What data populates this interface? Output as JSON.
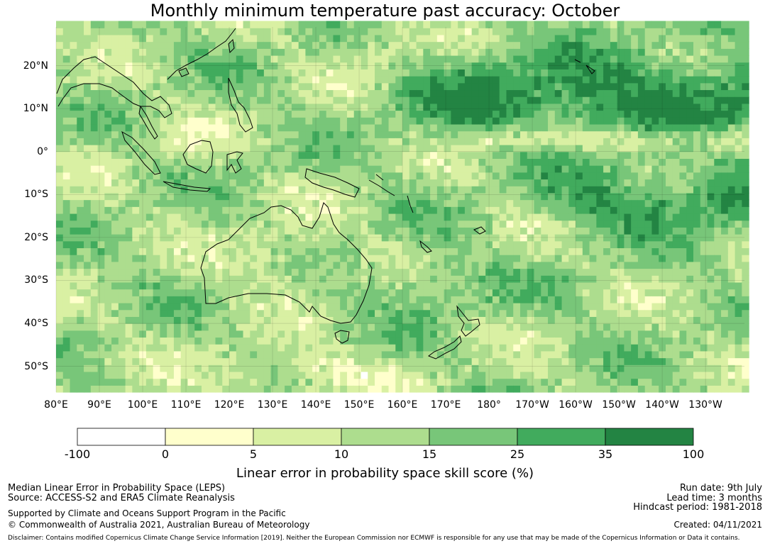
{
  "title": "Monthly minimum temperature past accuracy: October",
  "map": {
    "lat_ticks": [
      "20°N",
      "10°N",
      "0°",
      "10°S",
      "20°S",
      "30°S",
      "40°S",
      "50°S"
    ],
    "lon_ticks": [
      "80°E",
      "90°E",
      "100°E",
      "110°E",
      "120°E",
      "130°E",
      "140°E",
      "150°E",
      "160°E",
      "170°E",
      "180°",
      "170°W",
      "160°W",
      "150°W",
      "140°W",
      "130°W"
    ],
    "lon_range": [
      80,
      239
    ],
    "lat_range": [
      -56,
      29
    ]
  },
  "colorbar": {
    "boundaries": [
      "-100",
      "0",
      "5",
      "10",
      "15",
      "25",
      "35",
      "100"
    ],
    "colors": [
      "#ffffff",
      "#ffffcc",
      "#d9f0a3",
      "#addd8e",
      "#78c679",
      "#41ab5d",
      "#238443"
    ],
    "label": "Linear error in probability space skill score (%)"
  },
  "footer": {
    "left1": "Median Linear Error in Probability Space (LEPS)",
    "left2": "Source: ACCESS-S2 and ERA5 Climate Reanalysis",
    "left3": "Supported by Climate and Oceans Support Program in the Pacific",
    "left4": "© Commonwealth of Australia 2021, Australian Bureau of Meteorology",
    "right1": "Run date: 9th July",
    "right2": "Lead time: 3 months",
    "right3": "Hindcast period: 1981-2018",
    "right4": "Created: 04/11/2021",
    "disclaimer": "Disclaimer: Contains modified Copernicus Climate Change Service Information [2019]. Neither the European Commission nor ECMWF is responsible for any use that may be made of the Copernicus Information or Data it contains."
  }
}
